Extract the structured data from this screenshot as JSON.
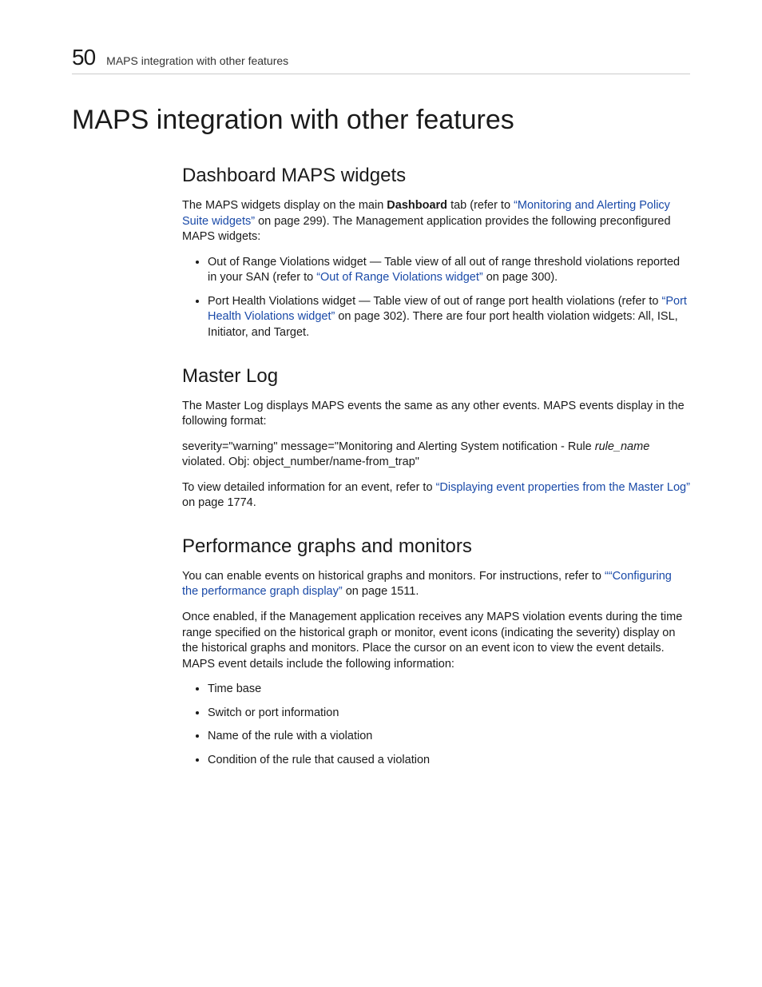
{
  "header": {
    "chapter_number": "50",
    "chapter_label": "MAPS integration with other features"
  },
  "title": "MAPS integration with other features",
  "sections": {
    "dashboard": {
      "heading": "Dashboard MAPS widgets",
      "p1_a": "The MAPS widgets display on the main ",
      "p1_bold": "Dashboard",
      "p1_b": " tab (refer to ",
      "p1_link": "“Monitoring and Alerting Policy Suite widgets”",
      "p1_c": " on page 299). The Management application provides the following preconfigured MAPS widgets:",
      "bullet1_a": "Out of Range Violations widget — Table view of all out of range threshold violations reported in your SAN (refer to ",
      "bullet1_link": "“Out of Range Violations widget”",
      "bullet1_b": " on page 300).",
      "bullet2_a": "Port Health Violations widget — Table view of out of range port health violations (refer to ",
      "bullet2_link": "“Port Health Violations widget”",
      "bullet2_b": " on page 302). There are four port health violation widgets: All, ISL, Initiator, and Target."
    },
    "masterlog": {
      "heading": "Master Log",
      "p1": "The Master Log displays MAPS events the same as any other events. MAPS events display in the following format:",
      "p2_a": "severity=\"warning\" message=\"Monitoring and Alerting System notification - Rule ",
      "p2_italic": "rule_name",
      "p2_b": " violated. Obj: object_number/name-from_trap\"",
      "p3_a": "To view detailed information for an event, refer to ",
      "p3_link": "“Displaying event properties from the Master Log”",
      "p3_b": " on page 1774."
    },
    "perf": {
      "heading": "Performance graphs and monitors",
      "p1_a": "You can enable events on historical graphs and monitors. For instructions, refer to ",
      "p1_link": "““Configuring the performance graph display”",
      "p1_b": " on page 1511.",
      "p2": "Once enabled, if the Management application receives any MAPS violation events during the time range specified on the historical graph or monitor, event icons (indicating the severity) display on the historical graphs and monitors. Place the cursor on an event icon to view the event details. MAPS event details include the following information:",
      "bullets": {
        "0": "Time base",
        "1": "Switch or port information",
        "2": "Name of the rule with a violation",
        "3": "Condition of the rule that caused a violation"
      }
    }
  },
  "colors": {
    "link": "#1a4aa8",
    "text": "#1a1a1a",
    "rule": "#cccccc",
    "background": "#ffffff"
  },
  "typography": {
    "h1_size_pt": 26,
    "h2_size_pt": 18,
    "body_size_pt": 11,
    "chapter_num_size_pt": 21
  }
}
